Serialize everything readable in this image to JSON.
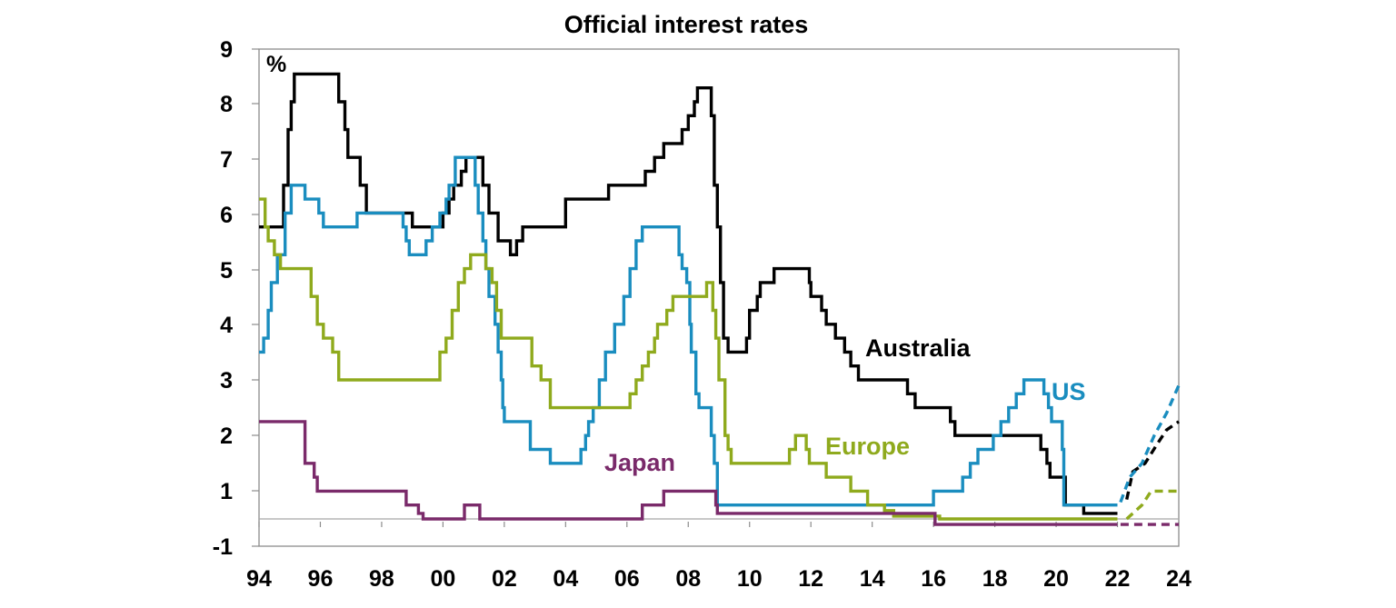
{
  "chart_data": {
    "type": "line",
    "title": "Official interest rates",
    "ylabel": "%",
    "xlabel": "",
    "ylim": [
      -1,
      9
    ],
    "xlim": [
      1994,
      2024
    ],
    "y_ticks": [
      "-1",
      "1",
      "2",
      "3",
      "4",
      "5",
      "6",
      "7",
      "8",
      "9"
    ],
    "x_ticks": [
      "94",
      "96",
      "98",
      "00",
      "02",
      "04",
      "06",
      "08",
      "10",
      "12",
      "14",
      "16",
      "18",
      "20",
      "22",
      "24"
    ],
    "zero_line": 0,
    "grid": false,
    "series": [
      {
        "name": "Australia",
        "color": "#000000",
        "values": [
          [
            1994,
            5.25
          ],
          [
            1994.7,
            5.25
          ],
          [
            1994.8,
            6
          ],
          [
            1994.95,
            7
          ],
          [
            1995.05,
            7.5
          ],
          [
            1995.15,
            8
          ],
          [
            1996.5,
            8
          ],
          [
            1996.6,
            7.5
          ],
          [
            1996.8,
            7
          ],
          [
            1996.9,
            6.5
          ],
          [
            1997.3,
            6
          ],
          [
            1997.5,
            5.5
          ],
          [
            1998.9,
            5.5
          ],
          [
            1999,
            5.25
          ],
          [
            1999.9,
            5.25
          ],
          [
            2000,
            5.5
          ],
          [
            2000.2,
            5.75
          ],
          [
            2000.35,
            6
          ],
          [
            2000.6,
            6.25
          ],
          [
            2000.75,
            6.5
          ],
          [
            2001.15,
            6.5
          ],
          [
            2001.3,
            6
          ],
          [
            2001.5,
            5.5
          ],
          [
            2001.8,
            5
          ],
          [
            2002.2,
            4.75
          ],
          [
            2002.4,
            5
          ],
          [
            2002.6,
            5.25
          ],
          [
            2003.9,
            5.25
          ],
          [
            2004,
            5.75
          ],
          [
            2005.3,
            5.75
          ],
          [
            2005.4,
            6
          ],
          [
            2006.5,
            6
          ],
          [
            2006.6,
            6.25
          ],
          [
            2006.9,
            6.5
          ],
          [
            2007.2,
            6.75
          ],
          [
            2007.7,
            6.75
          ],
          [
            2007.8,
            7
          ],
          [
            2008.0,
            7.25
          ],
          [
            2008.2,
            7.5
          ],
          [
            2008.3,
            7.75
          ],
          [
            2008.65,
            7.75
          ],
          [
            2008.75,
            7.25
          ],
          [
            2008.85,
            6
          ],
          [
            2008.95,
            5.25
          ],
          [
            2009.05,
            4.25
          ],
          [
            2009.15,
            3.25
          ],
          [
            2009.3,
            3
          ],
          [
            2009.8,
            3
          ],
          [
            2009.9,
            3.25
          ],
          [
            2010.0,
            3.75
          ],
          [
            2010.25,
            4
          ],
          [
            2010.35,
            4.25
          ],
          [
            2010.8,
            4.5
          ],
          [
            2011.0,
            4.5
          ],
          [
            2011.85,
            4.5
          ],
          [
            2011.95,
            4.25
          ],
          [
            2012.0,
            4
          ],
          [
            2012.35,
            3.75
          ],
          [
            2012.5,
            3.5
          ],
          [
            2012.8,
            3.25
          ],
          [
            2013.1,
            3
          ],
          [
            2013.3,
            2.75
          ],
          [
            2013.55,
            2.5
          ],
          [
            2014.0,
            2.5
          ],
          [
            2015.1,
            2.5
          ],
          [
            2015.15,
            2.25
          ],
          [
            2015.4,
            2
          ],
          [
            2016.4,
            2
          ],
          [
            2016.55,
            1.75
          ],
          [
            2016.7,
            1.5
          ],
          [
            2019.4,
            1.5
          ],
          [
            2019.5,
            1.25
          ],
          [
            2019.7,
            1
          ],
          [
            2019.8,
            0.75
          ],
          [
            2020.2,
            0.75
          ],
          [
            2020.3,
            0.25
          ],
          [
            2020.9,
            0.1
          ],
          [
            2022.0,
            0.1
          ]
        ]
      },
      {
        "name": "Australia forecast",
        "color": "#000000",
        "dashed": true,
        "values": [
          [
            2022.3,
            0.35
          ],
          [
            2022.5,
            0.85
          ],
          [
            2022.9,
            1.0
          ],
          [
            2023.3,
            1.35
          ],
          [
            2023.6,
            1.6
          ],
          [
            2024.0,
            1.75
          ]
        ]
      },
      {
        "name": "US",
        "color": "#1a8dbf",
        "values": [
          [
            1994,
            3
          ],
          [
            1994.15,
            3.25
          ],
          [
            1994.3,
            3.75
          ],
          [
            1994.4,
            4.25
          ],
          [
            1994.6,
            4.75
          ],
          [
            1994.85,
            5.5
          ],
          [
            1995.05,
            6
          ],
          [
            1995.5,
            5.75
          ],
          [
            1995.95,
            5.5
          ],
          [
            1996.1,
            5.25
          ],
          [
            1997.2,
            5.5
          ],
          [
            1998.7,
            5.25
          ],
          [
            1998.8,
            5
          ],
          [
            1998.9,
            4.75
          ],
          [
            1999.45,
            5
          ],
          [
            1999.65,
            5.25
          ],
          [
            1999.9,
            5.5
          ],
          [
            2000.1,
            5.75
          ],
          [
            2000.2,
            6
          ],
          [
            2000.4,
            6.5
          ],
          [
            2000.95,
            6.5
          ],
          [
            2001.05,
            6
          ],
          [
            2001.15,
            5.5
          ],
          [
            2001.3,
            5
          ],
          [
            2001.4,
            4.5
          ],
          [
            2001.5,
            4
          ],
          [
            2001.7,
            3.5
          ],
          [
            2001.8,
            3
          ],
          [
            2001.9,
            2.5
          ],
          [
            2001.95,
            2
          ],
          [
            2002.0,
            1.75
          ],
          [
            2002.85,
            1.25
          ],
          [
            2003.5,
            1
          ],
          [
            2004.4,
            1
          ],
          [
            2004.5,
            1.25
          ],
          [
            2004.65,
            1.5
          ],
          [
            2004.75,
            1.75
          ],
          [
            2004.9,
            2
          ],
          [
            2005.1,
            2.5
          ],
          [
            2005.3,
            3
          ],
          [
            2005.6,
            3.5
          ],
          [
            2005.9,
            4
          ],
          [
            2006.1,
            4.5
          ],
          [
            2006.3,
            5
          ],
          [
            2006.5,
            5.25
          ],
          [
            2007.6,
            5.25
          ],
          [
            2007.7,
            4.75
          ],
          [
            2007.8,
            4.5
          ],
          [
            2007.95,
            4.25
          ],
          [
            2008.05,
            3.5
          ],
          [
            2008.1,
            3
          ],
          [
            2008.25,
            2.25
          ],
          [
            2008.35,
            2
          ],
          [
            2008.75,
            1.5
          ],
          [
            2008.85,
            1
          ],
          [
            2008.95,
            0.25
          ],
          [
            2015.9,
            0.25
          ],
          [
            2016.0,
            0.5
          ],
          [
            2016.95,
            0.75
          ],
          [
            2017.2,
            1
          ],
          [
            2017.45,
            1.25
          ],
          [
            2017.95,
            1.5
          ],
          [
            2018.2,
            1.75
          ],
          [
            2018.45,
            2
          ],
          [
            2018.7,
            2.25
          ],
          [
            2018.95,
            2.5
          ],
          [
            2019.55,
            2.5
          ],
          [
            2019.6,
            2.25
          ],
          [
            2019.75,
            2
          ],
          [
            2019.85,
            1.75
          ],
          [
            2020.2,
            1.25
          ],
          [
            2020.25,
            0.25
          ],
          [
            2022.0,
            0.25
          ]
        ]
      },
      {
        "name": "US forecast",
        "color": "#1a8dbf",
        "dashed": true,
        "values": [
          [
            2022.1,
            0.3
          ],
          [
            2022.4,
            0.75
          ],
          [
            2022.8,
            1.0
          ],
          [
            2023.2,
            1.5
          ],
          [
            2023.6,
            1.9
          ],
          [
            2024.0,
            2.4
          ]
        ]
      },
      {
        "name": "Europe",
        "color": "#8faa1d",
        "values": [
          [
            1994,
            5.75
          ],
          [
            1994.2,
            5.25
          ],
          [
            1994.3,
            5
          ],
          [
            1994.5,
            4.75
          ],
          [
            1994.7,
            4.5
          ],
          [
            1995.5,
            4.5
          ],
          [
            1995.7,
            4.0
          ],
          [
            1995.9,
            3.5
          ],
          [
            1996.1,
            3.25
          ],
          [
            1996.4,
            3
          ],
          [
            1996.6,
            2.5
          ],
          [
            1999.3,
            2.5
          ],
          [
            1999.9,
            3
          ],
          [
            2000.1,
            3.25
          ],
          [
            2000.3,
            3.75
          ],
          [
            2000.5,
            4.25
          ],
          [
            2000.7,
            4.5
          ],
          [
            2000.9,
            4.75
          ],
          [
            2001.3,
            4.75
          ],
          [
            2001.4,
            4.5
          ],
          [
            2001.6,
            4.25
          ],
          [
            2001.75,
            3.75
          ],
          [
            2001.9,
            3.25
          ],
          [
            2002.9,
            2.75
          ],
          [
            2003.2,
            2.5
          ],
          [
            2003.5,
            2
          ],
          [
            2005.9,
            2
          ],
          [
            2006.1,
            2.25
          ],
          [
            2006.3,
            2.5
          ],
          [
            2006.5,
            2.75
          ],
          [
            2006.7,
            3
          ],
          [
            2006.9,
            3.25
          ],
          [
            2007.0,
            3.5
          ],
          [
            2007.3,
            3.75
          ],
          [
            2007.5,
            4
          ],
          [
            2008.5,
            4
          ],
          [
            2008.6,
            4.25
          ],
          [
            2008.7,
            4.25
          ],
          [
            2008.8,
            3.75
          ],
          [
            2008.9,
            3.25
          ],
          [
            2009.0,
            2.5
          ],
          [
            2009.2,
            1.5
          ],
          [
            2009.3,
            1.25
          ],
          [
            2009.4,
            1
          ],
          [
            2011.2,
            1
          ],
          [
            2011.3,
            1.25
          ],
          [
            2011.5,
            1.5
          ],
          [
            2011.85,
            1.25
          ],
          [
            2011.95,
            1
          ],
          [
            2012.5,
            0.75
          ],
          [
            2013.3,
            0.5
          ],
          [
            2013.85,
            0.25
          ],
          [
            2014.4,
            0.15
          ],
          [
            2014.7,
            0.05
          ],
          [
            2016.2,
            0
          ],
          [
            2022.0,
            0
          ]
        ]
      },
      {
        "name": "Europe forecast",
        "color": "#8faa1d",
        "dashed": true,
        "values": [
          [
            2022.3,
            0
          ],
          [
            2022.8,
            0.25
          ],
          [
            2023.1,
            0.5
          ],
          [
            2024.0,
            0.5
          ]
        ]
      },
      {
        "name": "Japan",
        "color": "#7a2a6a",
        "values": [
          [
            1994,
            1.75
          ],
          [
            1995.3,
            1.75
          ],
          [
            1995.5,
            1
          ],
          [
            1995.8,
            0.75
          ],
          [
            1995.9,
            0.5
          ],
          [
            1998.7,
            0.5
          ],
          [
            1998.8,
            0.25
          ],
          [
            1999.2,
            0.1
          ],
          [
            1999.35,
            0
          ],
          [
            2000.6,
            0
          ],
          [
            2000.7,
            0.25
          ],
          [
            2001.1,
            0.25
          ],
          [
            2001.2,
            0
          ],
          [
            2006.4,
            0
          ],
          [
            2006.5,
            0.25
          ],
          [
            2007.1,
            0.25
          ],
          [
            2007.2,
            0.5
          ],
          [
            2008.8,
            0.5
          ],
          [
            2008.9,
            0.25
          ],
          [
            2008.95,
            0.1
          ],
          [
            2016.0,
            0.1
          ],
          [
            2016.05,
            -0.1
          ],
          [
            2022.0,
            -0.1
          ]
        ]
      },
      {
        "name": "Japan forecast",
        "color": "#7a2a6a",
        "dashed": true,
        "values": [
          [
            2022.1,
            -0.1
          ],
          [
            2024.0,
            -0.1
          ]
        ]
      }
    ],
    "labels": [
      {
        "text": "Australia",
        "color": "#000000"
      },
      {
        "text": "US",
        "color": "#1a8dbf"
      },
      {
        "text": "Europe",
        "color": "#8faa1d"
      },
      {
        "text": "Japan",
        "color": "#7a2a6a"
      }
    ]
  }
}
